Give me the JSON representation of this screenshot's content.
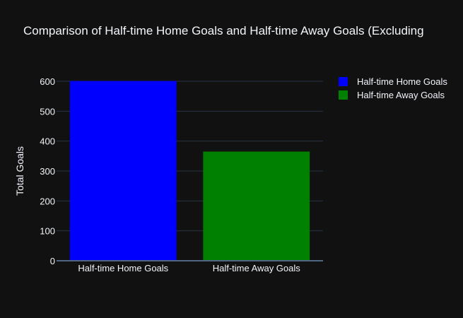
{
  "chart_data": {
    "type": "bar",
    "title": "Comparison of Half-time Home Goals and Half-time Away Goals (Excluding",
    "xlabel": "",
    "ylabel": "Total Goals",
    "categories": [
      "Half-time Home Goals",
      "Half-time Away Goals"
    ],
    "values": [
      601,
      365
    ],
    "bar_colors": [
      "#0000ff",
      "#008000"
    ],
    "ylim": [
      0,
      600
    ],
    "yticks": [
      0,
      100,
      200,
      300,
      400,
      500,
      600
    ],
    "grid": true,
    "legend_position": "top-right",
    "legend": [
      {
        "label": "Half-time Home Goals",
        "color": "#0000ff"
      },
      {
        "label": "Half-time Away Goals",
        "color": "#008000"
      }
    ]
  },
  "colors": {
    "background": "#111111",
    "grid": "#283442",
    "text": "#f2f5fa"
  }
}
